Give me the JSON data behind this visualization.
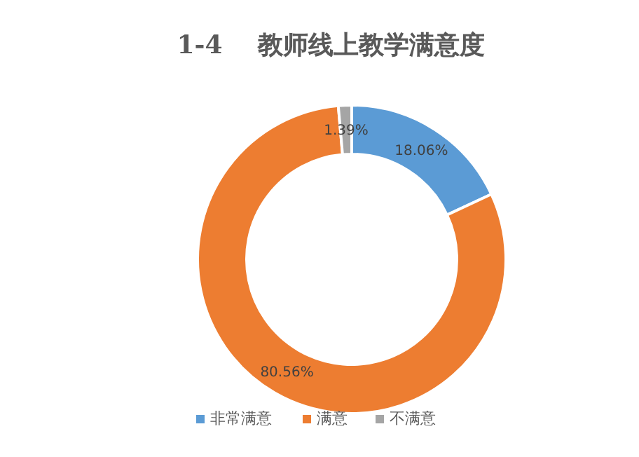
{
  "chart_data": {
    "type": "donut",
    "title": "1-4    教师线上教学满意度",
    "categories": [
      "非常满意",
      "满意",
      "不满意"
    ],
    "values": [
      18.06,
      80.56,
      1.39
    ],
    "colors": [
      "#5b9bd5",
      "#ed7d31",
      "#a5a5a5"
    ],
    "value_labels": [
      "18.06%",
      "80.56%",
      "1.39%"
    ],
    "legend": "bottom"
  }
}
